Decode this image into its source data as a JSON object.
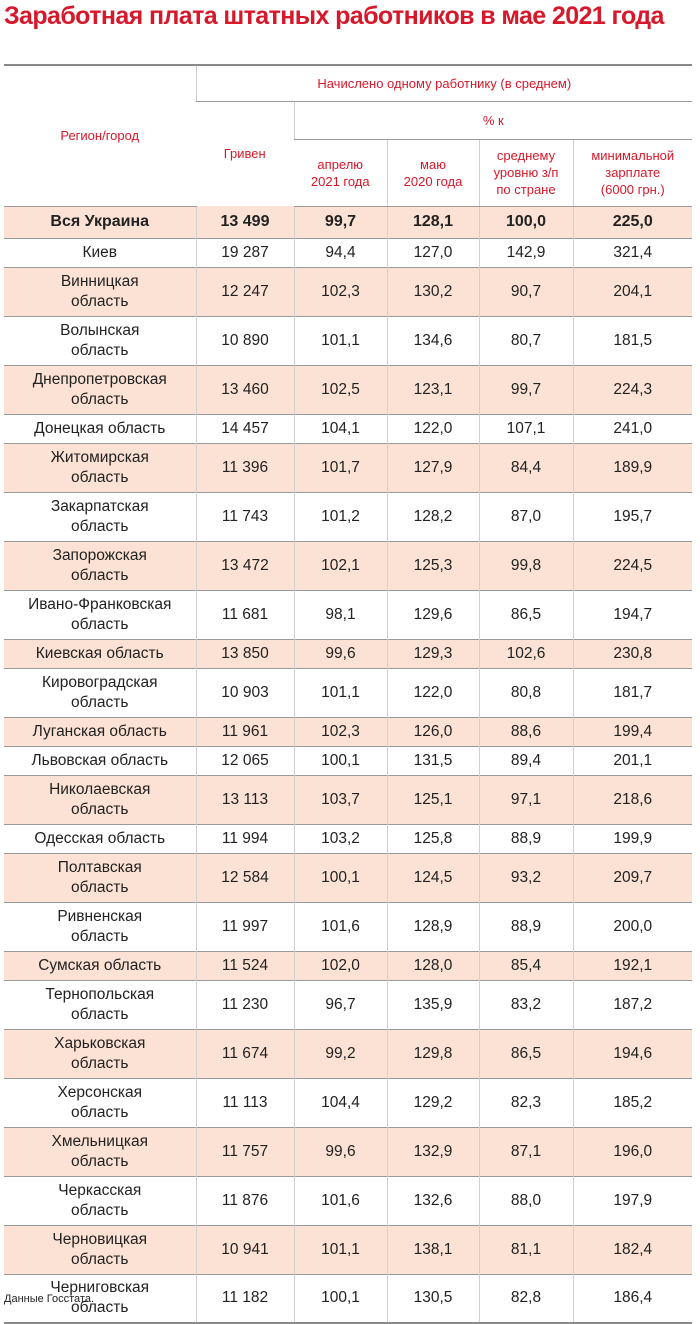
{
  "title": "Заработная плата штатных работников в мае 2021 года",
  "header": {
    "region": "Регион/город",
    "accrued": "Начислено одному работнику (в среднем)",
    "uah": "Гривен",
    "pct": "% к",
    "cols": [
      "апрелю\n2021 года",
      "маю\n2020 года",
      "среднему\nуровню з/п\nпо стране",
      "минимальной\nзарплате\n(6000 грн.)"
    ]
  },
  "row_colors": {
    "shaded": "#fbe2d4",
    "plain": "#ffffff",
    "accent": "#d7182a"
  },
  "rows": [
    {
      "name": "Вся Украина",
      "uah": "13 499",
      "apr": "99,7",
      "may": "128,1",
      "avg": "100,0",
      "min": "225,0"
    },
    {
      "name": "Киев",
      "uah": "19 287",
      "apr": "94,4",
      "may": "127,0",
      "avg": "142,9",
      "min": "321,4"
    },
    {
      "name": "Винницкая\nобласть",
      "uah": "12 247",
      "apr": "102,3",
      "may": "130,2",
      "avg": "90,7",
      "min": "204,1"
    },
    {
      "name": "Волынская\nобласть",
      "uah": "10 890",
      "apr": "101,1",
      "may": "134,6",
      "avg": "80,7",
      "min": "181,5"
    },
    {
      "name": "Днепропетровская\nобласть",
      "uah": "13 460",
      "apr": "102,5",
      "may": "123,1",
      "avg": "99,7",
      "min": "224,3"
    },
    {
      "name": "Донецкая область",
      "uah": "14 457",
      "apr": "104,1",
      "may": "122,0",
      "avg": "107,1",
      "min": "241,0"
    },
    {
      "name": "Житомирская\nобласть",
      "uah": "11 396",
      "apr": "101,7",
      "may": "127,9",
      "avg": "84,4",
      "min": "189,9"
    },
    {
      "name": "Закарпатская\nобласть",
      "uah": "11 743",
      "apr": "101,2",
      "may": "128,2",
      "avg": "87,0",
      "min": "195,7"
    },
    {
      "name": "Запорожская\nобласть",
      "uah": "13 472",
      "apr": "102,1",
      "may": "125,3",
      "avg": "99,8",
      "min": "224,5"
    },
    {
      "name": "Ивано-Франковская\nобласть",
      "uah": "11 681",
      "apr": "98,1",
      "may": "129,6",
      "avg": "86,5",
      "min": "194,7"
    },
    {
      "name": "Киевская область",
      "uah": "13 850",
      "apr": "99,6",
      "may": "129,3",
      "avg": "102,6",
      "min": "230,8"
    },
    {
      "name": "Кировоградская\nобласть",
      "uah": "10 903",
      "apr": "101,1",
      "may": "122,0",
      "avg": "80,8",
      "min": "181,7"
    },
    {
      "name": "Луганская область",
      "uah": "11 961",
      "apr": "102,3",
      "may": "126,0",
      "avg": "88,6",
      "min": "199,4"
    },
    {
      "name": "Львовская область",
      "uah": "12 065",
      "apr": "100,1",
      "may": "131,5",
      "avg": "89,4",
      "min": "201,1"
    },
    {
      "name": "Николаевская\nобласть",
      "uah": "13 113",
      "apr": "103,7",
      "may": "125,1",
      "avg": "97,1",
      "min": "218,6"
    },
    {
      "name": "Одесская область",
      "uah": "11 994",
      "apr": "103,2",
      "may": "125,8",
      "avg": "88,9",
      "min": "199,9"
    },
    {
      "name": "Полтавская\nобласть",
      "uah": "12 584",
      "apr": "100,1",
      "may": "124,5",
      "avg": "93,2",
      "min": "209,7"
    },
    {
      "name": "Ривненская\nобласть",
      "uah": "11 997",
      "apr": "101,6",
      "may": "128,9",
      "avg": "88,9",
      "min": "200,0"
    },
    {
      "name": "Сумская область",
      "uah": "11 524",
      "apr": "102,0",
      "may": "128,0",
      "avg": "85,4",
      "min": "192,1"
    },
    {
      "name": "Тернопольская\nобласть",
      "uah": "11 230",
      "apr": "96,7",
      "may": "135,9",
      "avg": "83,2",
      "min": "187,2"
    },
    {
      "name": "Харьковская\nобласть",
      "uah": "11 674",
      "apr": "99,2",
      "may": "129,8",
      "avg": "86,5",
      "min": "194,6"
    },
    {
      "name": "Херсонская\nобласть",
      "uah": "11 113",
      "apr": "104,4",
      "may": "129,2",
      "avg": "82,3",
      "min": "185,2"
    },
    {
      "name": "Хмельницкая\nобласть",
      "uah": "11 757",
      "apr": "99,6",
      "may": "132,9",
      "avg": "87,1",
      "min": "196,0"
    },
    {
      "name": "Черкасская\nобласть",
      "uah": "11 876",
      "apr": "101,6",
      "may": "132,6",
      "avg": "88,0",
      "min": "197,9"
    },
    {
      "name": "Черновицкая\nобласть",
      "uah": "10 941",
      "apr": "101,1",
      "may": "138,1",
      "avg": "81,1",
      "min": "182,4"
    },
    {
      "name": "Черниговская\nобласть",
      "uah": "11 182",
      "apr": "100,1",
      "may": "130,5",
      "avg": "82,8",
      "min": "186,4"
    }
  ],
  "source": "Данные Госстата."
}
